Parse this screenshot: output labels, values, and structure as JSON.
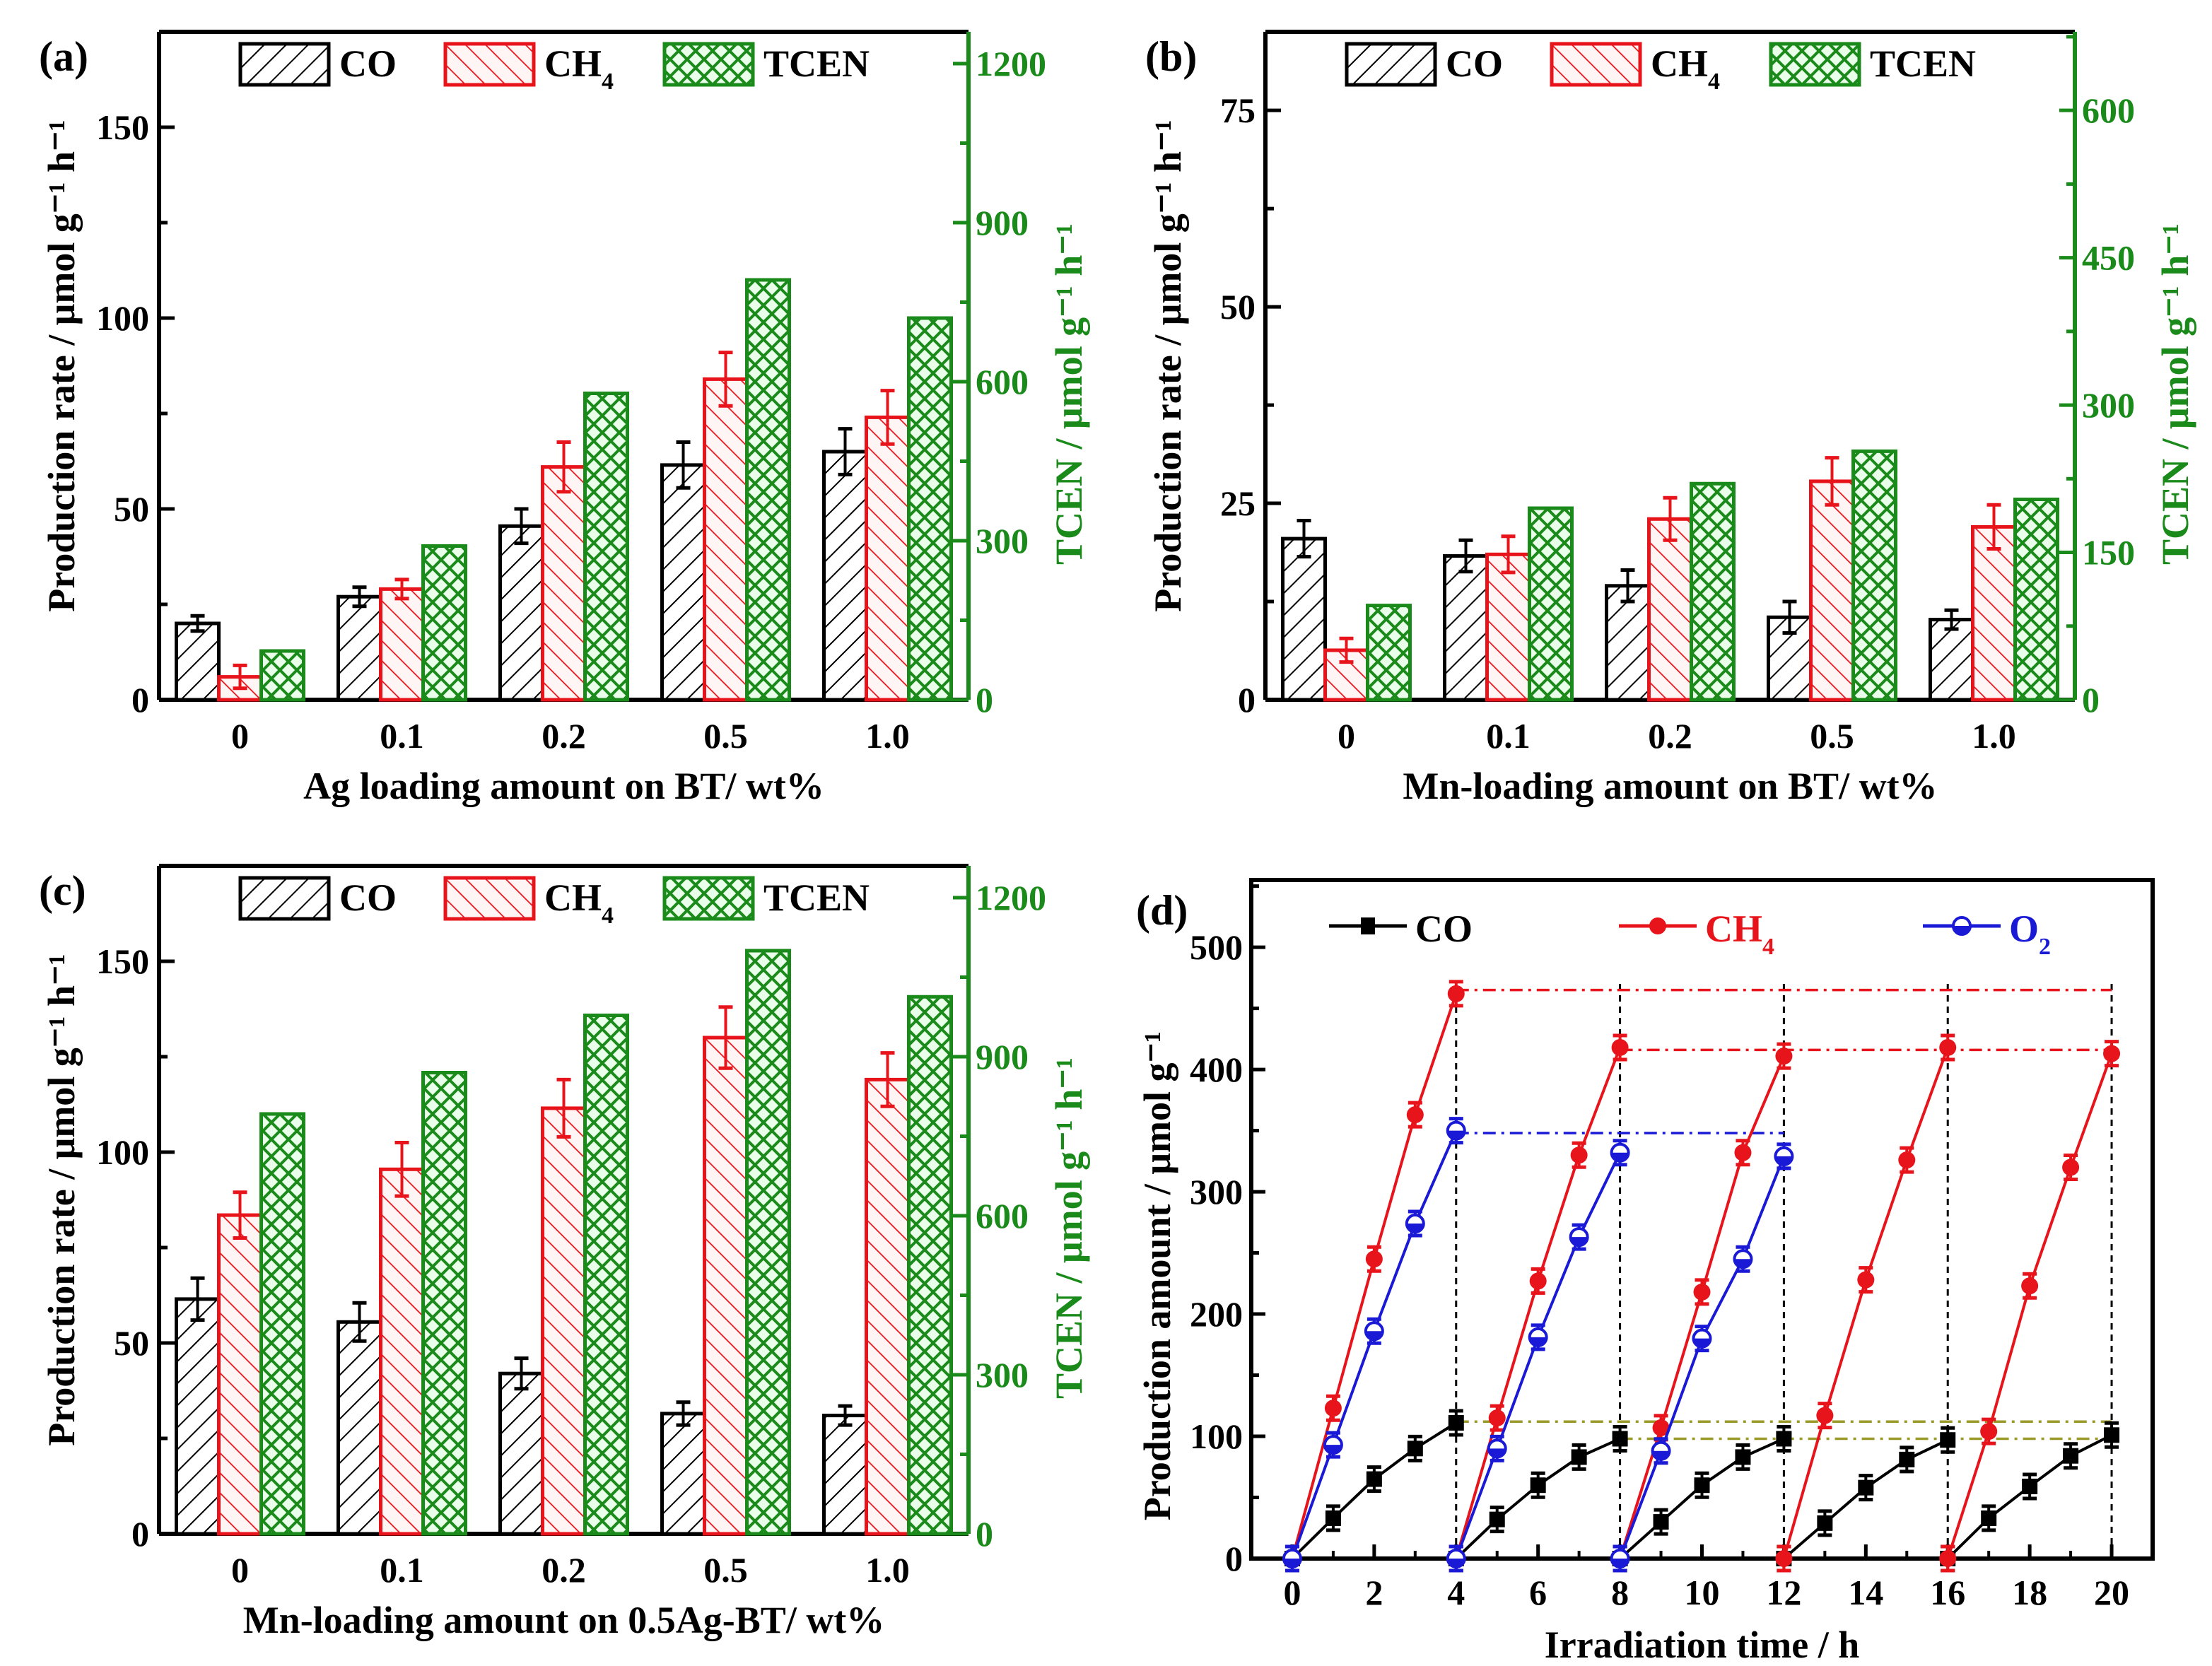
{
  "colors": {
    "co": "#000000",
    "ch4": "#e8141b",
    "tcen": "#1a8a1a",
    "o2": "#1a1ad6",
    "ref_olive": "#9a9a2a",
    "tcen_fill": "#eaffea",
    "ch4_fill": "#fff5f5"
  },
  "chart_data": [
    {
      "id": "a",
      "type": "bar",
      "panel_label": "(a)",
      "xlabel": "Ag loading amount on BT/ wt%",
      "ylabel": "Production rate / μmol g⁻¹ h⁻¹",
      "ylabel_right": "TCEN / μmol g⁻¹ h⁻¹",
      "categories": [
        "0",
        "0.1",
        "0.2",
        "0.5",
        "1.0"
      ],
      "ylim": [
        0,
        175
      ],
      "yticks": [
        0,
        50,
        100,
        150
      ],
      "ylim_right": [
        0,
        1260
      ],
      "yticks_right": [
        0,
        300,
        600,
        900,
        1200
      ],
      "legend": [
        "CO",
        "CH4",
        "TCEN"
      ],
      "series": [
        {
          "name": "CO",
          "axis": "left",
          "values": [
            20,
            27,
            45.5,
            61.5,
            65
          ],
          "errors": [
            2,
            2.5,
            4.5,
            6,
            6
          ]
        },
        {
          "name": "CH4",
          "axis": "left",
          "values": [
            6,
            29,
            61,
            84,
            74
          ],
          "errors": [
            3,
            2.5,
            6.5,
            7,
            7
          ]
        },
        {
          "name": "TCEN",
          "axis": "right",
          "values": [
            92,
            290,
            578,
            792,
            720
          ]
        }
      ]
    },
    {
      "id": "b",
      "type": "bar",
      "panel_label": "(b)",
      "xlabel": "Mn-loading amount on BT/ wt%",
      "ylabel": "Production rate / μmol g⁻¹ h⁻¹",
      "ylabel_right": "TCEN / μmol g⁻¹ h⁻¹",
      "categories": [
        "0",
        "0.1",
        "0.2",
        "0.5",
        "1.0"
      ],
      "ylim": [
        0,
        85
      ],
      "yticks": [
        0,
        25,
        50,
        75
      ],
      "ylim_right": [
        0,
        680
      ],
      "yticks_right": [
        0,
        150,
        300,
        450,
        600
      ],
      "legend": [
        "CO",
        "CH4",
        "TCEN"
      ],
      "series": [
        {
          "name": "CO",
          "axis": "left",
          "values": [
            20.5,
            18.3,
            14.5,
            10.5,
            10.2
          ],
          "errors": [
            2.3,
            2,
            2,
            2,
            1.2
          ]
        },
        {
          "name": "CH4",
          "axis": "left",
          "values": [
            6.3,
            18.5,
            23,
            27.8,
            22
          ],
          "errors": [
            1.5,
            2.3,
            2.7,
            3,
            2.8
          ]
        },
        {
          "name": "TCEN",
          "axis": "right",
          "values": [
            96,
            195,
            220,
            253,
            204
          ]
        }
      ]
    },
    {
      "id": "c",
      "type": "bar",
      "panel_label": "(c)",
      "xlabel": "Mn-loading amount on 0.5Ag-BT/ wt%",
      "ylabel": "Production rate / μmol g⁻¹ h⁻¹",
      "ylabel_right": "TCEN / μmol g⁻¹ h⁻¹",
      "categories": [
        "0",
        "0.1",
        "0.2",
        "0.5",
        "1.0"
      ],
      "ylim": [
        0,
        175
      ],
      "yticks": [
        0,
        50,
        100,
        150
      ],
      "ylim_right": [
        0,
        1260
      ],
      "yticks_right": [
        0,
        300,
        600,
        900,
        1200
      ],
      "legend": [
        "CO",
        "CH4",
        "TCEN"
      ],
      "series": [
        {
          "name": "CO",
          "axis": "left",
          "values": [
            61.5,
            55.5,
            42,
            31.5,
            31
          ],
          "errors": [
            5.5,
            5,
            4,
            3,
            2.5
          ]
        },
        {
          "name": "CH4",
          "axis": "left",
          "values": [
            83.5,
            95.5,
            111.5,
            130,
            119
          ],
          "errors": [
            6,
            7,
            7.5,
            8,
            7
          ]
        },
        {
          "name": "TCEN",
          "axis": "right",
          "values": [
            792,
            870,
            978,
            1100,
            1013
          ]
        }
      ]
    },
    {
      "id": "d",
      "type": "line",
      "panel_label": "(d)",
      "xlabel": "Irradiation time / h",
      "ylabel": "Production amount / μmol g⁻¹",
      "xlim": [
        -1,
        21
      ],
      "xticks": [
        0,
        2,
        4,
        6,
        8,
        10,
        12,
        14,
        16,
        18,
        20
      ],
      "ylim": [
        0,
        555
      ],
      "yticks": [
        0,
        100,
        200,
        300,
        400,
        500
      ],
      "legend": [
        "CO",
        "CH4",
        "O2"
      ],
      "cycle_boundaries": [
        4,
        8,
        12,
        16,
        20
      ],
      "series": [
        {
          "name": "CO",
          "marker": "square",
          "segments": [
            [
              [
                0,
                0
              ],
              [
                1,
                33
              ],
              [
                2,
                65
              ],
              [
                3,
                90
              ],
              [
                4,
                111
              ]
            ],
            [
              [
                4,
                0
              ],
              [
                5,
                32
              ],
              [
                6,
                60
              ],
              [
                7,
                83
              ],
              [
                8,
                98
              ]
            ],
            [
              [
                8,
                0
              ],
              [
                9,
                30
              ],
              [
                10,
                60
              ],
              [
                11,
                83
              ],
              [
                12,
                98
              ]
            ],
            [
              [
                12,
                0
              ],
              [
                13,
                29
              ],
              [
                14,
                58
              ],
              [
                15,
                81
              ],
              [
                16,
                97
              ]
            ],
            [
              [
                16,
                0
              ],
              [
                17,
                33
              ],
              [
                18,
                59
              ],
              [
                19,
                84
              ],
              [
                20,
                101
              ]
            ]
          ]
        },
        {
          "name": "CH4",
          "marker": "circle",
          "segments": [
            [
              [
                0,
                0
              ],
              [
                1,
                123
              ],
              [
                2,
                245
              ],
              [
                3,
                363
              ],
              [
                4,
                462
              ]
            ],
            [
              [
                4,
                0
              ],
              [
                5,
                115
              ],
              [
                6,
                227
              ],
              [
                7,
                330
              ],
              [
                8,
                418
              ]
            ],
            [
              [
                8,
                0
              ],
              [
                9,
                107
              ],
              [
                10,
                218
              ],
              [
                11,
                332
              ],
              [
                12,
                411
              ]
            ],
            [
              [
                12,
                0
              ],
              [
                13,
                117
              ],
              [
                14,
                228
              ],
              [
                15,
                326
              ],
              [
                16,
                418
              ]
            ],
            [
              [
                16,
                0
              ],
              [
                17,
                104
              ],
              [
                18,
                223
              ],
              [
                19,
                320
              ],
              [
                20,
                413
              ]
            ]
          ]
        },
        {
          "name": "O2",
          "marker": "half-circle",
          "segments": [
            [
              [
                0,
                0
              ],
              [
                1,
                93
              ],
              [
                2,
                186
              ],
              [
                3,
                274
              ],
              [
                4,
                350
              ]
            ],
            [
              [
                4,
                0
              ],
              [
                5,
                90
              ],
              [
                6,
                181
              ],
              [
                7,
                263
              ],
              [
                8,
                332
              ]
            ],
            [
              [
                8,
                0
              ],
              [
                9,
                88
              ],
              [
                10,
                180
              ],
              [
                11,
                245
              ],
              [
                12,
                329
              ]
            ]
          ]
        }
      ],
      "reference_lines": [
        {
          "color": "ch4",
          "y": 465,
          "x": [
            4,
            20
          ]
        },
        {
          "color": "ch4",
          "y": 416,
          "x": [
            8,
            20
          ]
        },
        {
          "color": "o2",
          "y": 348,
          "x": [
            4,
            12
          ]
        },
        {
          "color": "ref_olive",
          "y": 112,
          "x": [
            4,
            20
          ]
        },
        {
          "color": "ref_olive",
          "y": 98,
          "x": [
            8,
            20
          ]
        }
      ]
    }
  ]
}
